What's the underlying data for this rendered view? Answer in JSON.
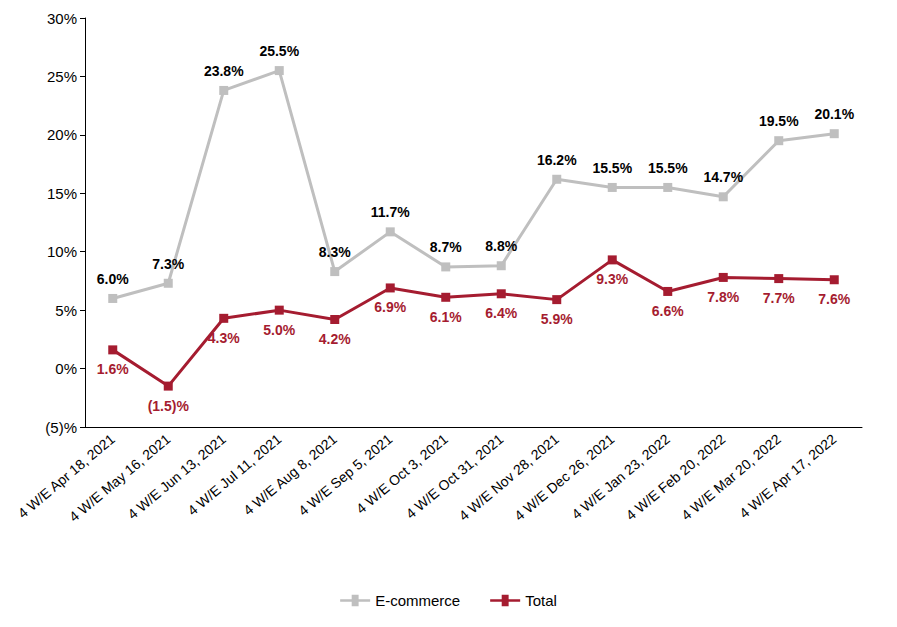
{
  "chart_data": {
    "type": "line",
    "categories": [
      "4 W/E Apr 18, 2021",
      "4 W/E May 16, 2021",
      "4 W/E Jun 13, 2021",
      "4 W/E Jul 11, 2021",
      "4 W/E Aug 8, 2021",
      "4 W/E Sep 5, 2021",
      "4 W/E Oct 3, 2021",
      "4 W/E Oct 31, 2021",
      "4 W/E Nov 28, 2021",
      "4 W/E Dec 26, 2021",
      "4 W/E Jan 23, 2022",
      "4 W/E Feb 20, 2022",
      "4 W/E Mar 20, 2022",
      "4 W/E Apr 17, 2022"
    ],
    "series": [
      {
        "name": "E-commerce",
        "color": "#BFBFBF",
        "marker": "square",
        "line_style": "solid",
        "values": [
          6.0,
          7.3,
          23.8,
          25.5,
          8.3,
          11.7,
          8.7,
          8.8,
          16.2,
          15.5,
          15.5,
          14.7,
          19.5,
          20.1
        ],
        "value_labels": [
          "6.0%",
          "7.3%",
          "23.8%",
          "25.5%",
          "8.3%",
          "11.7%",
          "8.7%",
          "8.8%",
          "16.2%",
          "15.5%",
          "15.5%",
          "14.7%",
          "19.5%",
          "20.1%"
        ]
      },
      {
        "name": "Total",
        "color": "#A51C30",
        "marker": "square",
        "line_style": "solid",
        "values": [
          1.6,
          -1.5,
          4.3,
          5.0,
          4.2,
          6.9,
          6.1,
          6.4,
          5.9,
          9.3,
          6.6,
          7.8,
          7.7,
          7.6
        ],
        "value_labels": [
          "1.6%",
          "(1.5)%",
          "4.3%",
          "5.0%",
          "4.2%",
          "6.9%",
          "6.1%",
          "6.4%",
          "5.9%",
          "9.3%",
          "6.6%",
          "7.8%",
          "7.7%",
          "7.6%"
        ]
      }
    ],
    "ylim": [
      -5,
      30
    ],
    "yticks": [
      {
        "value": -5,
        "label": "(5)%"
      },
      {
        "value": 0,
        "label": "0%"
      },
      {
        "value": 5,
        "label": "5%"
      },
      {
        "value": 10,
        "label": "10%"
      },
      {
        "value": 15,
        "label": "15%"
      },
      {
        "value": 20,
        "label": "20%"
      },
      {
        "value": 25,
        "label": "25%"
      },
      {
        "value": 30,
        "label": "30%"
      }
    ],
    "grid": false,
    "legend": "bottom",
    "data_labels": true
  }
}
